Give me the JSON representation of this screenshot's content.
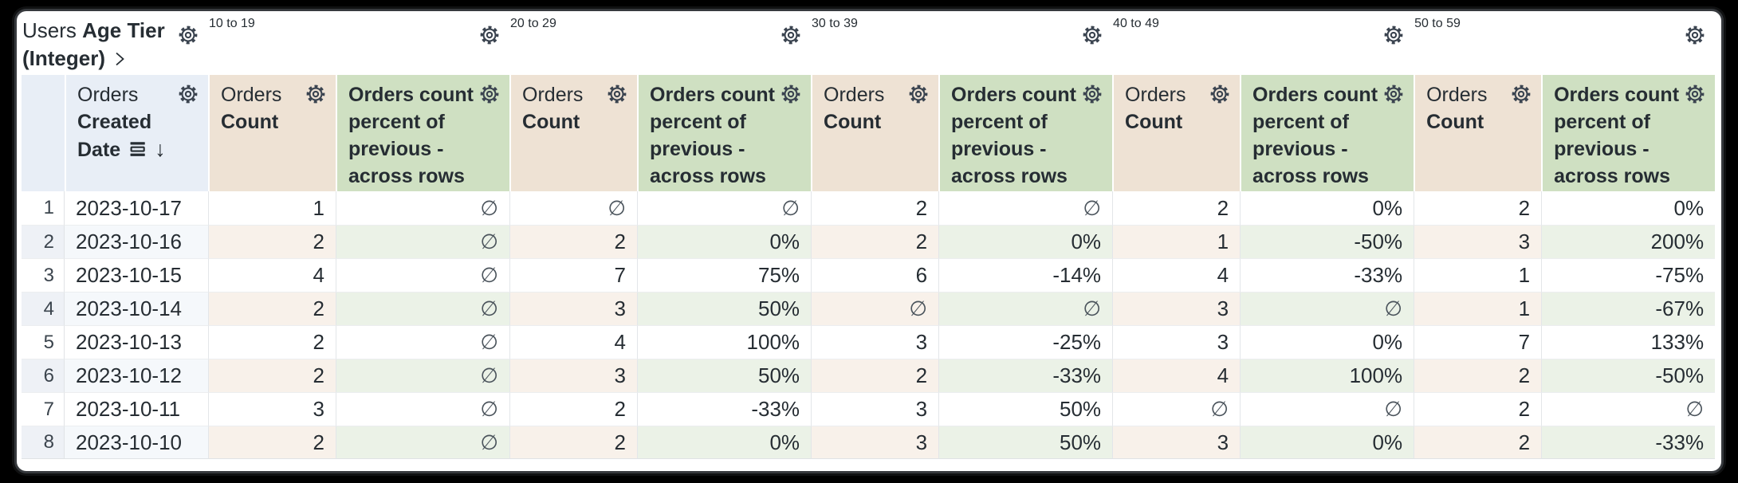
{
  "app": {
    "background_color": "#000000",
    "card_color": "#ffffff"
  },
  "colors": {
    "pivot_header_bg": "#cdd9e5",
    "row_field_header_bg": "#e8eef6",
    "count_header_bg": "#eee2d4",
    "percent_header_bg": "#cfe0c2",
    "even_row_count_bg": "#f8f1ea",
    "even_row_percent_bg": "#ebf2e7",
    "text_color": "#262d33"
  },
  "table": {
    "corner": {
      "view": "Users",
      "field": "Age Tier (Integer)"
    },
    "pivot_field_values": [
      "10 to 19",
      "20 to 29",
      "30 to 39",
      "40 to 49",
      "50 to 59"
    ],
    "row_field": {
      "view": "Orders",
      "field": "Created Date",
      "sort_arrow": "↓"
    },
    "measures": {
      "count": {
        "view": "Orders",
        "field": "Count"
      },
      "percent": {
        "label": "Orders count percent of previous - across rows"
      }
    },
    "empty_symbol": "∅",
    "rows": [
      {
        "num": "1",
        "date": "2023-10-17",
        "values": [
          "1",
          "∅",
          "∅",
          "∅",
          "2",
          "∅",
          "2",
          "0%",
          "2",
          "0%"
        ]
      },
      {
        "num": "2",
        "date": "2023-10-16",
        "values": [
          "2",
          "∅",
          "2",
          "0%",
          "2",
          "0%",
          "1",
          "-50%",
          "3",
          "200%"
        ]
      },
      {
        "num": "3",
        "date": "2023-10-15",
        "values": [
          "4",
          "∅",
          "7",
          "75%",
          "6",
          "-14%",
          "4",
          "-33%",
          "1",
          "-75%"
        ]
      },
      {
        "num": "4",
        "date": "2023-10-14",
        "values": [
          "2",
          "∅",
          "3",
          "50%",
          "∅",
          "∅",
          "3",
          "∅",
          "1",
          "-67%"
        ]
      },
      {
        "num": "5",
        "date": "2023-10-13",
        "values": [
          "2",
          "∅",
          "4",
          "100%",
          "3",
          "-25%",
          "3",
          "0%",
          "7",
          "133%"
        ]
      },
      {
        "num": "6",
        "date": "2023-10-12",
        "values": [
          "2",
          "∅",
          "3",
          "50%",
          "2",
          "-33%",
          "4",
          "100%",
          "2",
          "-50%"
        ]
      },
      {
        "num": "7",
        "date": "2023-10-11",
        "values": [
          "3",
          "∅",
          "2",
          "-33%",
          "3",
          "50%",
          "∅",
          "∅",
          "2",
          "∅"
        ]
      },
      {
        "num": "8",
        "date": "2023-10-10",
        "values": [
          "2",
          "∅",
          "2",
          "0%",
          "3",
          "50%",
          "3",
          "0%",
          "2",
          "-33%"
        ]
      }
    ]
  }
}
